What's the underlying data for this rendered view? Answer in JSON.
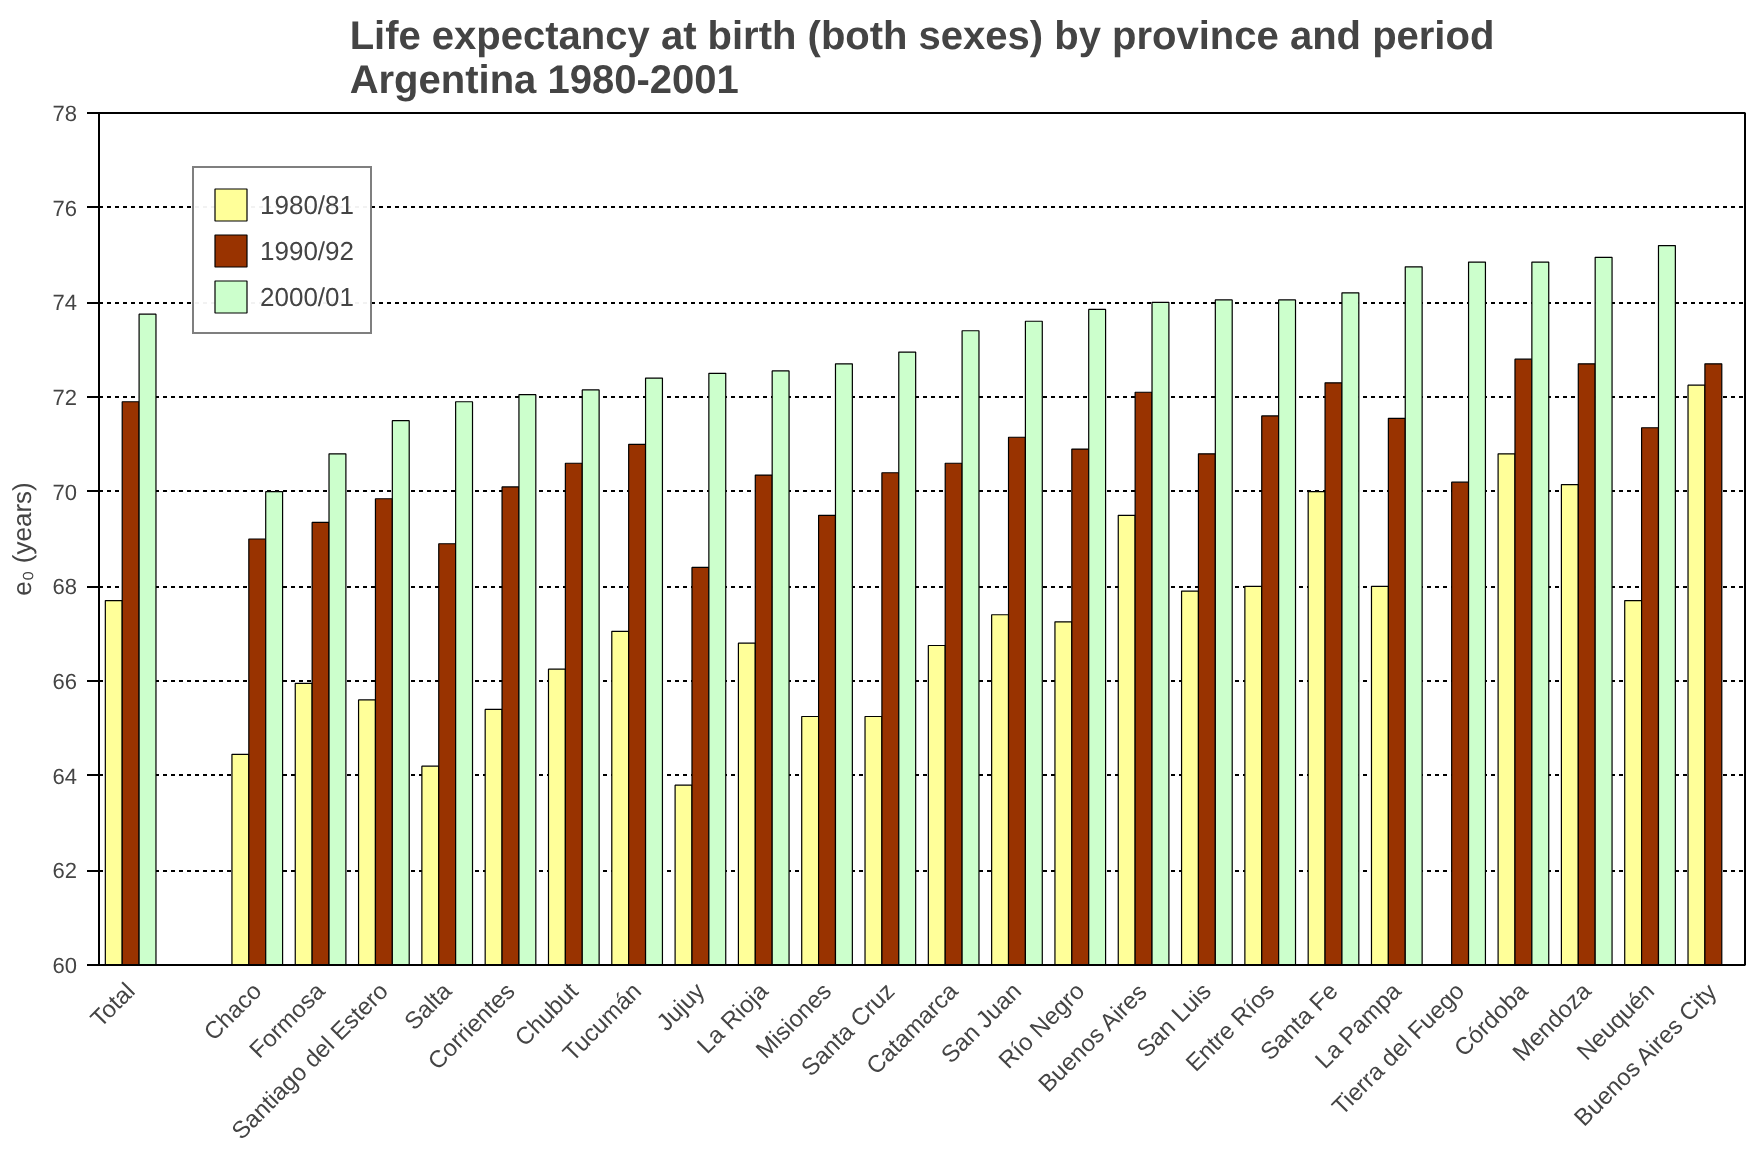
{
  "chart_data": {
    "type": "bar",
    "title": "Life expectancy at birth (both sexes) by province and period\nArgentina 1980-2001",
    "ylabel": "e₀ (years)",
    "categories": [
      "Total",
      null,
      "Chaco",
      "Formosa",
      "Santiago del Estero",
      "Salta",
      "Corrientes",
      "Chubut",
      "Tucumán",
      "Jujuy",
      "La Rioja",
      "Misiones",
      "Santa Cruz",
      "Catamarca",
      "San Juan",
      "Río Negro",
      "Buenos Aires",
      "San Luis",
      "Entre Ríos",
      "Santa Fe",
      "La Pampa",
      "Tierra del Fuego",
      "Córdoba",
      "Mendoza",
      "Neuquén",
      "Buenos Aires City"
    ],
    "series": [
      {
        "name": "1980/81",
        "color": "#ffff99",
        "values": [
          67.7,
          null,
          64.45,
          65.95,
          65.6,
          64.2,
          65.4,
          66.25,
          67.05,
          63.8,
          66.8,
          65.25,
          65.25,
          66.75,
          67.4,
          67.25,
          69.5,
          67.9,
          68.0,
          70.0,
          68.0,
          null,
          70.8,
          70.15,
          67.7,
          72.25
        ]
      },
      {
        "name": "1990/92",
        "color": "#993300",
        "values": [
          71.9,
          null,
          69.0,
          69.35,
          69.85,
          68.9,
          70.1,
          70.6,
          71.0,
          68.4,
          70.35,
          69.5,
          70.4,
          70.6,
          71.15,
          70.9,
          72.1,
          70.8,
          71.6,
          72.3,
          71.55,
          70.2,
          72.8,
          72.7,
          71.35,
          72.7
        ]
      },
      {
        "name": "2000/01",
        "color": "#ccffcc",
        "values": [
          73.75,
          null,
          70.0,
          70.8,
          71.5,
          71.9,
          72.05,
          72.15,
          72.4,
          72.5,
          72.55,
          72.7,
          72.95,
          73.4,
          73.6,
          73.85,
          74.0,
          74.05,
          74.05,
          74.2,
          74.75,
          74.85,
          74.85,
          74.95,
          75.2,
          null
        ]
      }
    ],
    "ylim": [
      60,
      78
    ],
    "yticks": [
      60,
      62,
      64,
      66,
      68,
      70,
      72,
      74,
      76,
      78
    ],
    "grid": "y",
    "legend": "top left"
  }
}
